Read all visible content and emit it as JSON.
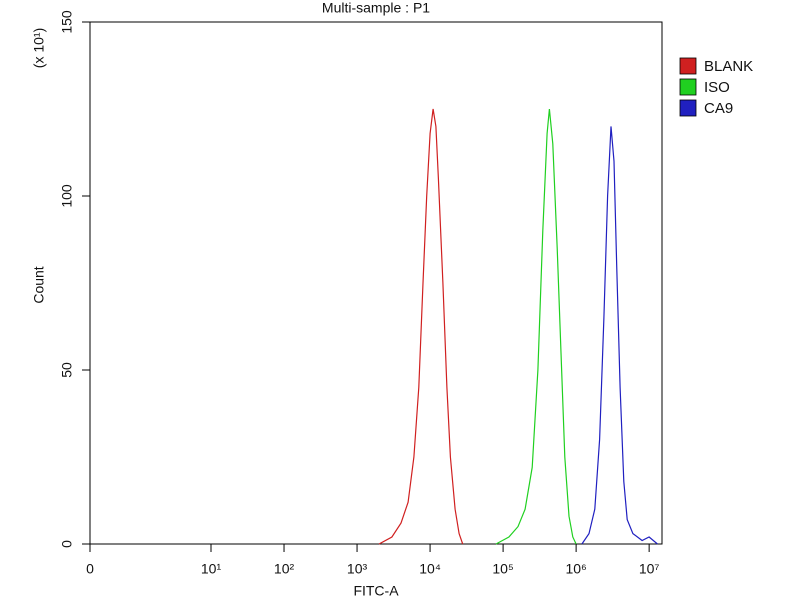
{
  "chart_data": {
    "type": "line",
    "title": "Multi-sample : P1",
    "x_label": "FITC-A",
    "y_label": "Count",
    "y_multiplier": "(x 10¹)",
    "xscale": "biexponential",
    "xlim": [
      0,
      15000000
    ],
    "xticks": [
      0,
      {
        "value": 10,
        "label": "10¹"
      },
      {
        "value": 100,
        "label": "10²"
      },
      {
        "value": 1000,
        "label": "10³"
      },
      {
        "value": 10000,
        "label": "10⁴"
      },
      {
        "value": 100000,
        "label": "10⁵"
      },
      {
        "value": 1000000,
        "label": "10⁶"
      },
      {
        "value": 10000000,
        "label": "10⁷"
      }
    ],
    "ylim": [
      0,
      150
    ],
    "yticks": [
      0,
      50,
      100,
      150
    ],
    "legend": "upper right",
    "series": [
      {
        "name": "BLANK",
        "color": "#d02020",
        "x": [
          2000,
          3000,
          4000,
          5000,
          6000,
          7000,
          8000,
          9000,
          10000,
          11000,
          12000,
          13000,
          15000,
          17000,
          19000,
          22000,
          25000,
          28000
        ],
        "values": [
          0,
          2,
          6,
          12,
          25,
          45,
          75,
          100,
          118,
          125,
          120,
          105,
          75,
          45,
          25,
          10,
          3,
          0
        ]
      },
      {
        "name": "ISO",
        "color": "#20d020",
        "x": [
          80000,
          120000,
          160000,
          200000,
          250000,
          300000,
          350000,
          400000,
          430000,
          480000,
          550000,
          620000,
          700000,
          800000,
          900000,
          1000000
        ],
        "values": [
          0,
          2,
          5,
          10,
          22,
          50,
          90,
          118,
          125,
          115,
          85,
          55,
          25,
          8,
          2,
          0
        ]
      },
      {
        "name": "CA9",
        "color": "#2020c0",
        "x": [
          1200000,
          1500000,
          1800000,
          2100000,
          2400000,
          2700000,
          3000000,
          3300000,
          3600000,
          4000000,
          4500000,
          5000000,
          6000000,
          8000000,
          10000000,
          13000000
        ],
        "values": [
          0,
          3,
          10,
          30,
          65,
          100,
          120,
          110,
          80,
          45,
          18,
          7,
          3,
          1,
          2,
          0
        ]
      }
    ]
  }
}
